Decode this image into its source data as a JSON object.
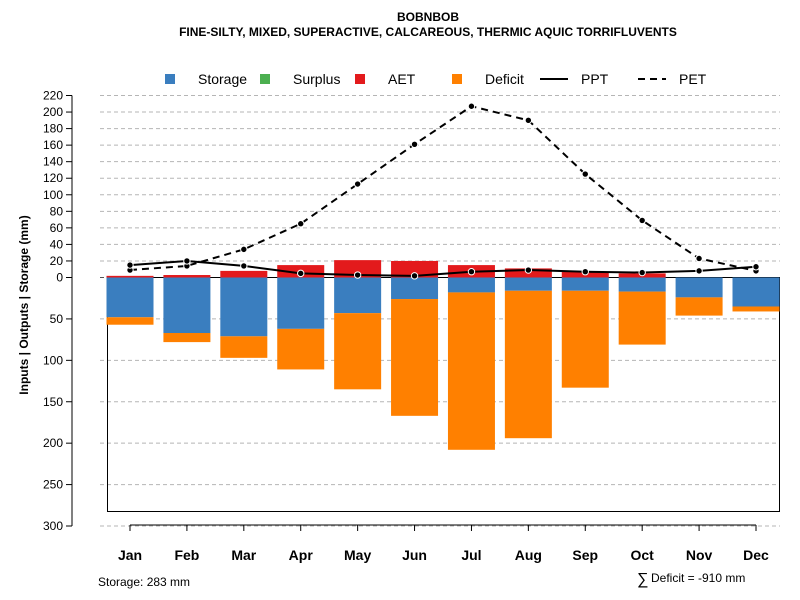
{
  "chart_data": {
    "type": "bar",
    "title": "BOBNBOB",
    "subtitle": "FINE-SILTY, MIXED, SUPERACTIVE, CALCAREOUS, THERMIC AQUIC TORRIFLUVENTS",
    "ylabel": "Inputs | Outputs | Storage    (mm)",
    "upper_axis": {
      "ylim": [
        0,
        220
      ],
      "ticks": [
        "0",
        "20",
        "40",
        "60",
        "80",
        "100",
        "120",
        "140",
        "160",
        "180",
        "200",
        "220"
      ]
    },
    "lower_axis": {
      "ylim": [
        0,
        300
      ],
      "ticks": [
        "0",
        "50",
        "100",
        "150",
        "200",
        "250",
        "300"
      ]
    },
    "categories": [
      "Jan",
      "Feb",
      "Mar",
      "Apr",
      "May",
      "Jun",
      "Jul",
      "Aug",
      "Sep",
      "Oct",
      "Nov",
      "Dec"
    ],
    "legend": [
      {
        "name": "Storage",
        "kind": "box",
        "color": "#3A7EBF"
      },
      {
        "name": "Surplus",
        "kind": "box",
        "color": "#4CAF50"
      },
      {
        "name": "AET",
        "kind": "box",
        "color": "#E31A1C"
      },
      {
        "name": "Deficit",
        "kind": "box",
        "color": "#FF8000"
      },
      {
        "name": "PPT",
        "kind": "solid"
      },
      {
        "name": "PET",
        "kind": "dashed"
      }
    ],
    "series": [
      {
        "name": "PPT",
        "values": [
          15,
          20,
          14,
          5,
          3,
          2,
          7,
          9,
          7,
          6,
          8,
          13
        ]
      },
      {
        "name": "PET",
        "values": [
          9,
          14,
          34,
          65,
          113,
          161,
          207,
          190,
          125,
          69,
          23,
          8
        ]
      },
      {
        "name": "AET",
        "values": [
          2,
          3,
          8,
          15,
          21,
          20,
          15,
          11,
          7,
          5,
          0,
          0
        ]
      },
      {
        "name": "Storage",
        "values": [
          48,
          67,
          71,
          62,
          43,
          26,
          18,
          16,
          16,
          17,
          24,
          35
        ]
      },
      {
        "name": "Deficit",
        "values": [
          9,
          11,
          26,
          49,
          92,
          141,
          190,
          178,
          117,
          64,
          22,
          6
        ]
      },
      {
        "name": "Surplus",
        "values": [
          0,
          0,
          0,
          0,
          0,
          0,
          0,
          0,
          0,
          0,
          0,
          0
        ]
      }
    ],
    "grid": true
  },
  "footer": {
    "storage_text": "Storage: 283 mm",
    "deficit_symbol": "∑",
    "deficit_text": "Deficit = -910 mm"
  }
}
